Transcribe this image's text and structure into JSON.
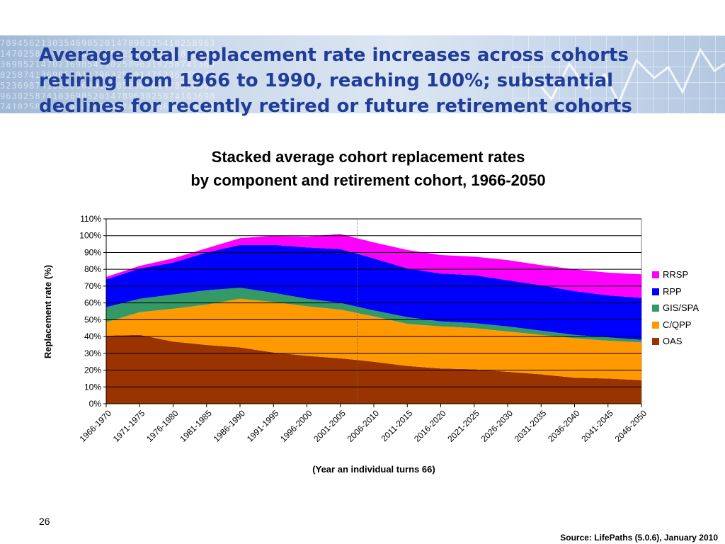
{
  "slide": {
    "title_lines": [
      "Average total replacement rate increases across cohorts",
      "retiring from 1966 to 1990, reaching 100%;  substantial",
      "declines for recently retired or future retirement cohorts"
    ],
    "page_number": "26",
    "source": "Source:  LifePaths  (5.0.6), January 2010",
    "title_color": "#1f3d99"
  },
  "chart_data": {
    "type": "area",
    "stacked": true,
    "title": "Stacked average cohort replacement rates",
    "subtitle": "by component and retirement cohort, 1966-2050",
    "xlabel": "(Year an individual turns 66)",
    "ylabel": "Replacement rate (%)",
    "ylim": [
      0,
      110
    ],
    "ytick_values": [
      0,
      10,
      20,
      30,
      40,
      50,
      60,
      70,
      80,
      90,
      100,
      110
    ],
    "ytick_labels": [
      "0%",
      "10%",
      "20%",
      "30%",
      "40%",
      "50%",
      "60%",
      "70%",
      "80%",
      "90%",
      "100%",
      "110%"
    ],
    "grid": "horizontal",
    "legend_position": "right",
    "categories": [
      "1966-1970",
      "1971-1975",
      "1976-1980",
      "1981-1985",
      "1986-1990",
      "1991-1995",
      "1996-2000",
      "2001-2005",
      "2006-2010",
      "2011-2015",
      "2016-2020",
      "2021-2025",
      "2026-2030",
      "2031-2035",
      "2036-2040",
      "2041-2045",
      "2046-2050"
    ],
    "series": [
      {
        "name": "OAS",
        "color": "#993300",
        "values": [
          40.5,
          41,
          37,
          35,
          33.5,
          30.5,
          28.5,
          27,
          25,
          22.5,
          21,
          20.5,
          19,
          17.5,
          15.5,
          15,
          14
        ]
      },
      {
        "name": "C/QPP",
        "color": "#ff9900",
        "values": [
          8,
          13.5,
          19.5,
          24,
          29,
          30,
          29.5,
          29,
          27,
          25,
          25,
          24.5,
          24,
          23.5,
          23.5,
          22.5,
          22.5
        ]
      },
      {
        "name": "GIS/SPA",
        "color": "#339966",
        "values": [
          9,
          8,
          8.5,
          8.5,
          6.5,
          5.5,
          4.5,
          4,
          3.5,
          4,
          3,
          3,
          3,
          2.5,
          2,
          2,
          1.5
        ]
      },
      {
        "name": "RPP",
        "color": "#0000ff",
        "values": [
          16.5,
          18,
          19,
          22.5,
          25.5,
          28.5,
          30.5,
          32,
          31,
          29,
          28.5,
          28.5,
          27.5,
          27,
          26,
          25,
          25
        ]
      },
      {
        "name": "RRSP",
        "color": "#ff00ff",
        "values": [
          1.5,
          1.5,
          2.5,
          2.5,
          4,
          5.5,
          6.5,
          9,
          9.5,
          11,
          11,
          11,
          12,
          12,
          13,
          13.5,
          14
        ]
      }
    ],
    "legend_order": [
      "RRSP",
      "RPP",
      "GIS/SPA",
      "C/QPP",
      "OAS"
    ]
  }
}
